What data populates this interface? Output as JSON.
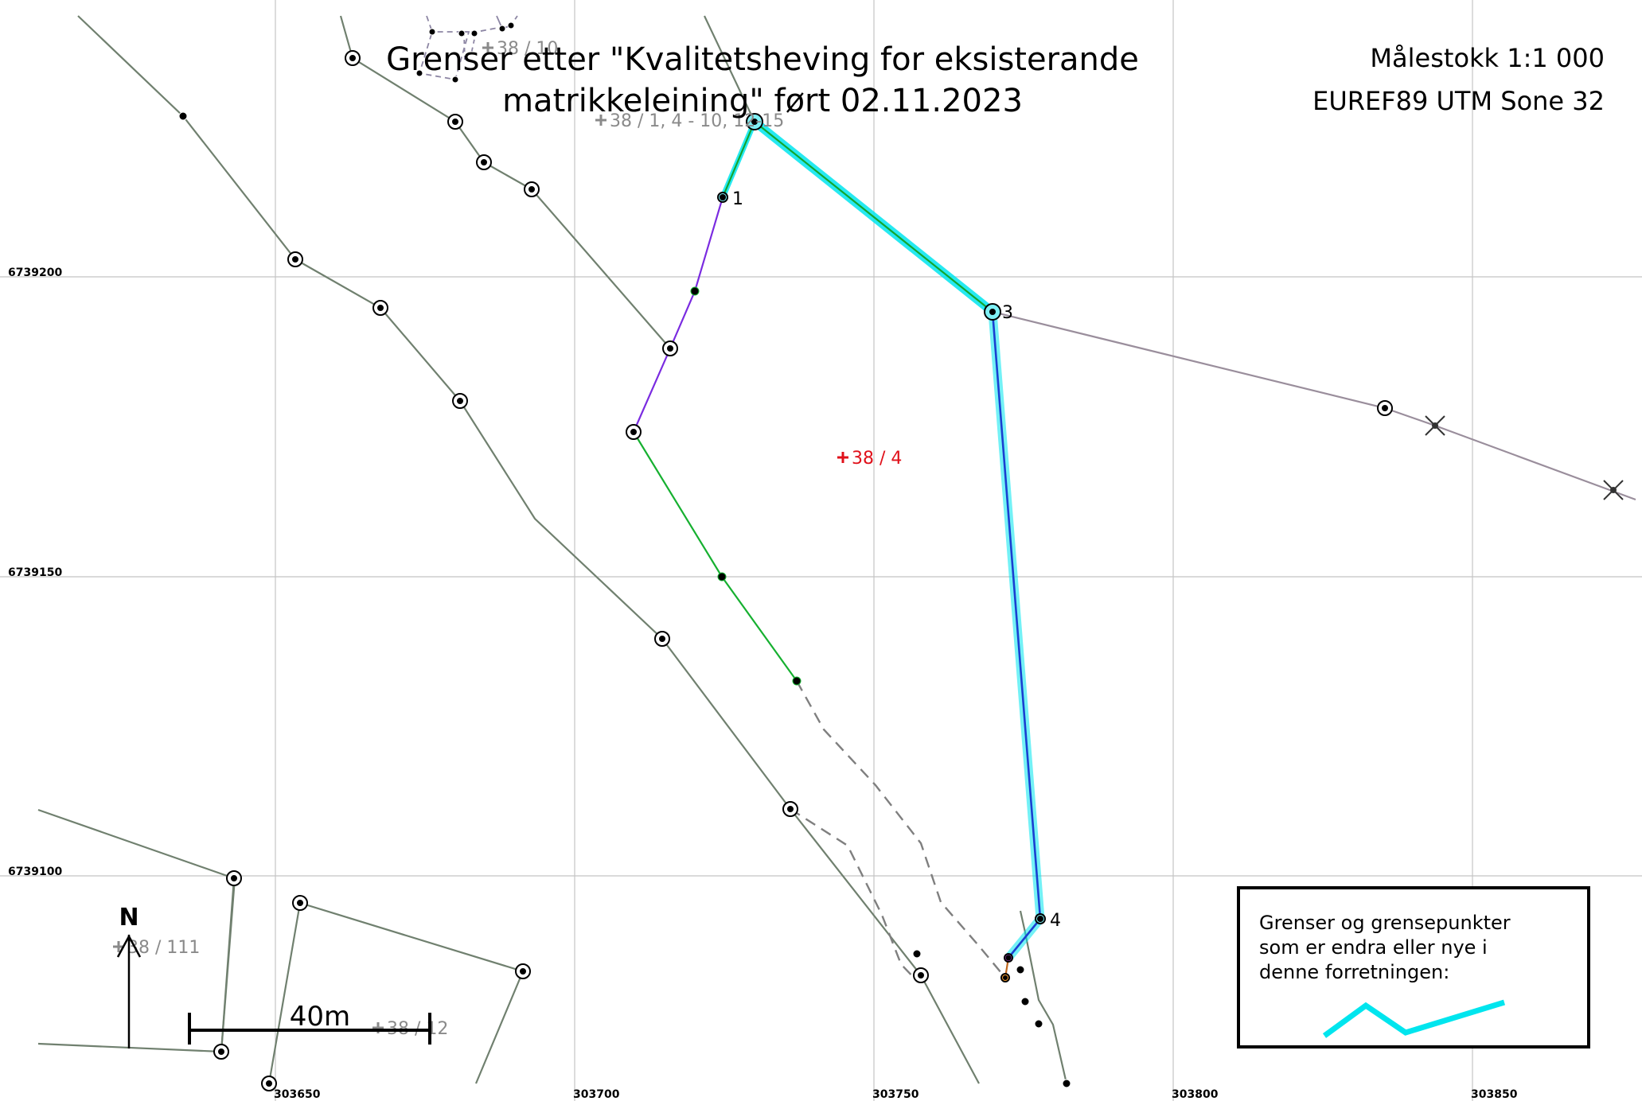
{
  "title": {
    "line1": "Grenser etter \"Kvalitetsheving for eksisterande",
    "line2": "matrikkeleining\" ført 02.11.2023"
  },
  "map_info": {
    "scale": "Målestokk 1:1 000",
    "crs": "EUREF89 UTM Sone 32"
  },
  "axes": {
    "northing_labels": [
      "6739200",
      "6739150",
      "6739100"
    ],
    "easting_labels": [
      "303650",
      "303700",
      "303750",
      "303800",
      "303850"
    ]
  },
  "parcels": {
    "main": "38 / 4",
    "north_top": "38 / 10",
    "north": "38 / 1, 4 - 10, 12-15",
    "west": "38 / 111",
    "southwest": "38 / 12"
  },
  "point_labels": [
    "1",
    "3",
    "4"
  ],
  "north_arrow": "N",
  "scalebar_label": "40m",
  "legend": {
    "line1": "Grenser og grensepunkter",
    "line2": "som er endra eller nye i",
    "line3": "denne forretningen:"
  },
  "colors": {
    "grid": "#bdbdbd",
    "gray_boundary": "#70806f",
    "highlight": "#00e5ee",
    "green_line": "#16b030",
    "purple_line": "#7a2be0",
    "blue_line": "#1a3fd1",
    "main_parcel_label": "#e0101a"
  },
  "icons": {
    "boundary_point": "circle-dot-icon",
    "parcel_marker": "plus-icon",
    "north_arrow": "arrow-up-icon"
  }
}
